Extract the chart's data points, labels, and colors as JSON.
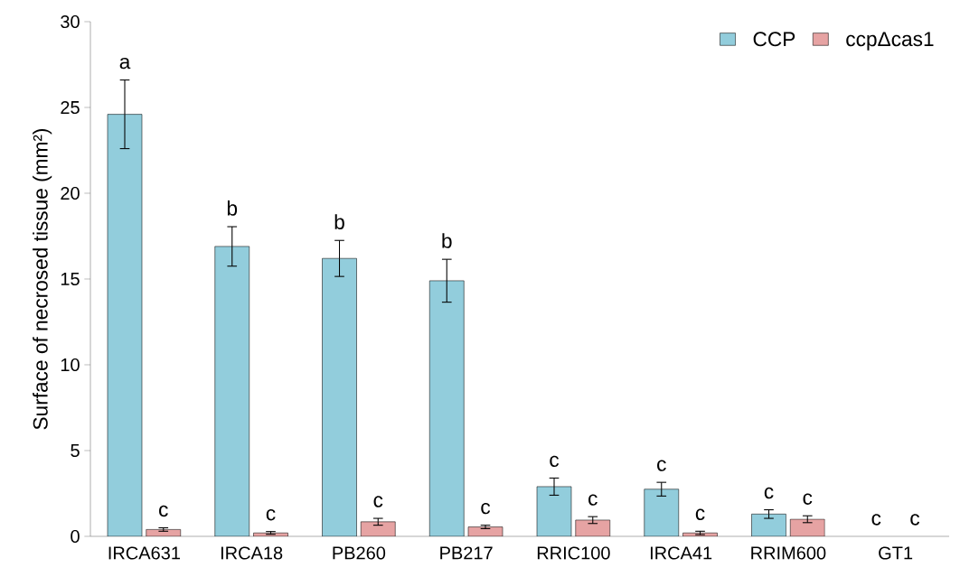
{
  "chart_data": {
    "type": "bar",
    "ylabel": "Surface of necrosed tissue (mm²)",
    "categories": [
      "IRCA631",
      "IRCA18",
      "PB260",
      "PB217",
      "RRIC100",
      "IRCA41",
      "RRIM600",
      "GT1"
    ],
    "series": [
      {
        "name": "CCP",
        "color": "#92cddc",
        "values": [
          24.6,
          16.9,
          16.2,
          14.9,
          2.9,
          2.75,
          1.3,
          null
        ],
        "errors": [
          2.0,
          1.15,
          1.05,
          1.25,
          0.5,
          0.4,
          0.25,
          null
        ],
        "value_labels": [
          "a",
          "b",
          "b",
          "b",
          "c",
          "c",
          "c",
          "c"
        ]
      },
      {
        "name": "ccpΔcas1",
        "color": "#e6a3a3",
        "values": [
          0.4,
          0.2,
          0.85,
          0.55,
          0.95,
          0.2,
          1.0,
          null
        ],
        "errors": [
          0.1,
          0.08,
          0.2,
          0.1,
          0.2,
          0.1,
          0.2,
          null
        ],
        "value_labels": [
          "c",
          "c",
          "c",
          "c",
          "c",
          "c",
          "c",
          "c"
        ]
      }
    ],
    "ylim": [
      0,
      30
    ],
    "yticks": [
      0,
      5,
      10,
      15,
      20,
      25,
      30
    ],
    "grid": false,
    "legend": "top right"
  }
}
